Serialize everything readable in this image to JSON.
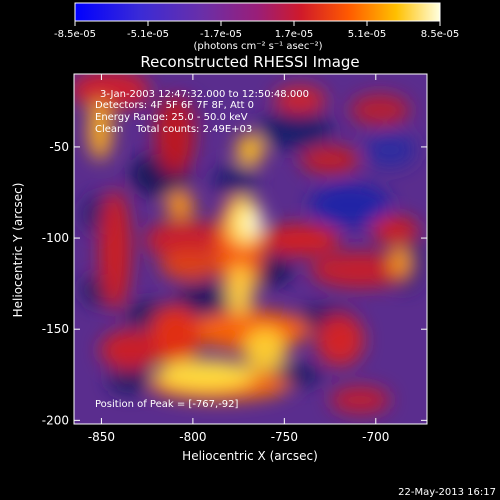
{
  "chart_data": {
    "type": "heatmap",
    "title": "Reconstructed RHESSI Image",
    "xlabel": "Heliocentric X (arcsec)",
    "ylabel": "Heliocentric Y (arcsec)",
    "xlim": [
      -865,
      -672
    ],
    "ylim": [
      -202,
      -10
    ],
    "xticks": [
      -850,
      -800,
      -750,
      -700
    ],
    "yticks": [
      -50,
      -100,
      -150,
      -200
    ],
    "colorbar": {
      "range": [
        -8.5e-05,
        8.5e-05
      ],
      "tick_labels": [
        "-8.5e-05",
        "-5.1e-05",
        "-1.7e-05",
        "1.7e-05",
        "5.1e-05",
        "8.5e-05"
      ],
      "units": "(photons cm⁻² s⁻¹ asec⁻²)"
    },
    "annotations": [
      "3-Jan-2003 12:47:32.000 to 12:50:48.000",
      "Detectors: 4F 5F 6F 7F 8F, Att 0",
      "Energy Range: 25.0 - 50.0 keV",
      "Clean    Total counts: 2.49E+03",
      "Position of Peak = [-767,-92]"
    ],
    "grid": false,
    "peak": {
      "x": -767,
      "y": -92
    }
  },
  "footer": {
    "date": "22-May-2013 16:17"
  },
  "colors": {
    "background": "#000000",
    "text": "#ffffff"
  }
}
